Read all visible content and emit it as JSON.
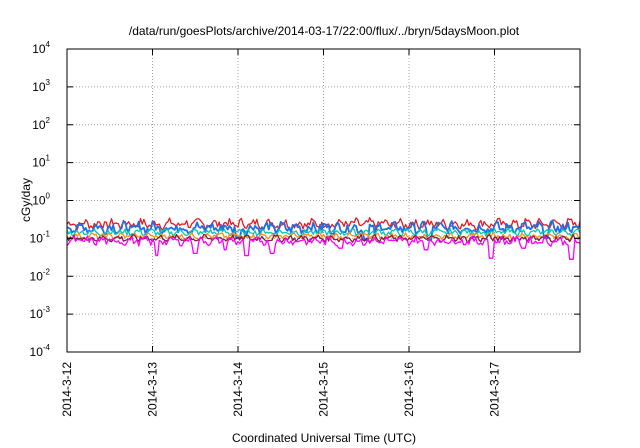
{
  "chart_data": {
    "type": "line",
    "title": "/data/run/goesPlots/archive/2014-03-17/22:00/flux/../bryn/5daysMoon.plot",
    "xlabel": "Coordinated Universal Time (UTC)",
    "ylabel": "cGy/day",
    "y_scale": "log",
    "ylim": [
      0.0001,
      10000
    ],
    "y_ticks": [
      {
        "base": "10",
        "exp": "-4",
        "value": 0.0001
      },
      {
        "base": "10",
        "exp": "-3",
        "value": 0.001
      },
      {
        "base": "10",
        "exp": "-2",
        "value": 0.01
      },
      {
        "base": "10",
        "exp": "-1",
        "value": 0.1
      },
      {
        "base": "10",
        "exp": "0",
        "value": 1
      },
      {
        "base": "10",
        "exp": "1",
        "value": 10
      },
      {
        "base": "10",
        "exp": "2",
        "value": 100
      },
      {
        "base": "10",
        "exp": "3",
        "value": 1000
      },
      {
        "base": "10",
        "exp": "4",
        "value": 10000
      }
    ],
    "xlim": [
      "2014-03-12",
      "2014-03-18"
    ],
    "x_ticks": [
      "2014-3-12",
      "2014-3-13",
      "2014-3-14",
      "2014-3-15",
      "2014-3-16",
      "2014-3-17"
    ],
    "grid": true,
    "series": [
      {
        "color": "#e8191f",
        "level": 0.24,
        "spread": 0.16,
        "dips": []
      },
      {
        "color": "#1e6fe6",
        "level": 0.19,
        "spread": 0.18,
        "dips": [
          [
            2.0,
            0.1
          ],
          [
            3.5,
            0.09
          ],
          [
            4.25,
            0.09
          ],
          [
            5.6,
            0.1
          ]
        ]
      },
      {
        "color": "#00c8b4",
        "level": 0.145,
        "spread": 0.1,
        "dips": []
      },
      {
        "color": "#ff8c1a",
        "level": 0.115,
        "spread": 0.09,
        "dips": []
      },
      {
        "color": "#7a1f3d",
        "level": 0.1,
        "spread": 0.1,
        "dips": []
      },
      {
        "color": "#ff00ff",
        "level": 0.085,
        "spread": 0.13,
        "dips": [
          [
            1.05,
            0.035
          ],
          [
            1.5,
            0.04
          ],
          [
            1.85,
            0.05
          ],
          [
            2.1,
            0.035
          ],
          [
            2.4,
            0.04
          ],
          [
            3.2,
            0.055
          ],
          [
            4.2,
            0.05
          ],
          [
            4.95,
            0.03
          ],
          [
            5.35,
            0.055
          ],
          [
            5.9,
            0.028
          ]
        ]
      }
    ]
  }
}
